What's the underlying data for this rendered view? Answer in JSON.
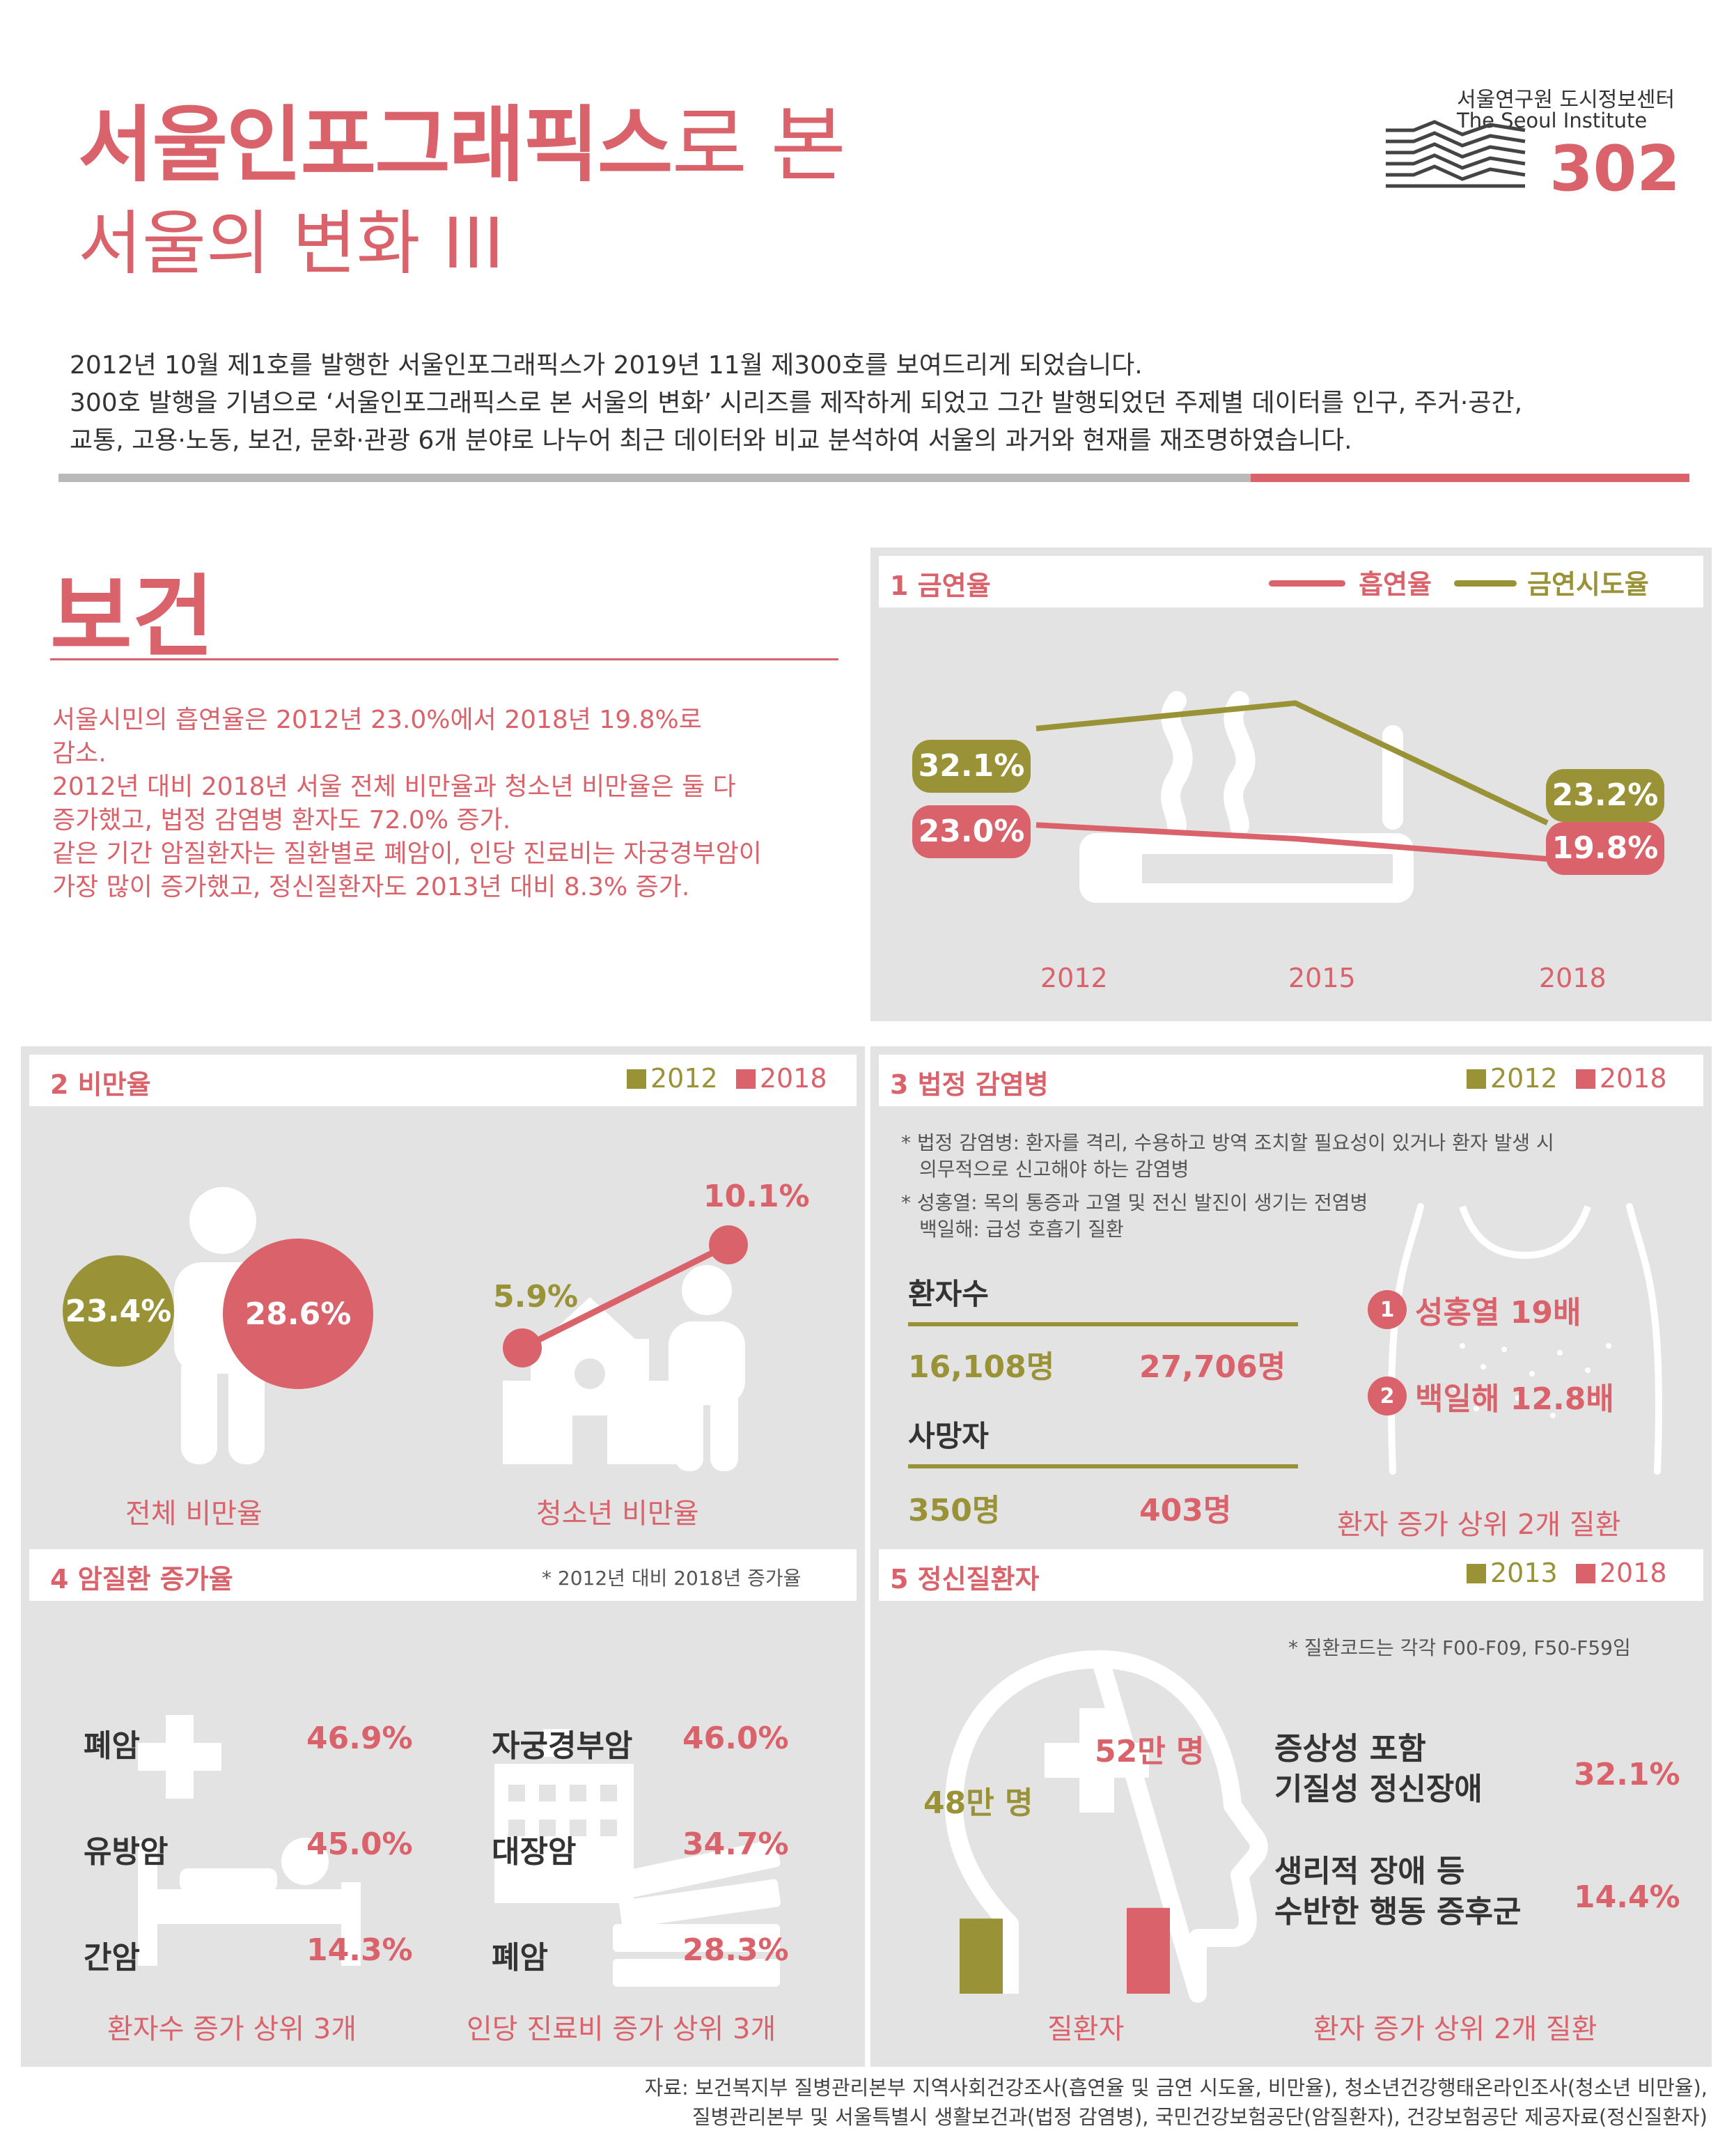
{
  "header": {
    "title_bold": "서울인포그래픽스",
    "title_rest": "로 본",
    "title_line2": "서울의 변화 III",
    "org_kr": "서울연구원 도시정보센터",
    "org_en": "The Seoul Institute",
    "issue": "302",
    "intro": [
      "2012년 10월 제1호를 발행한 서울인포그래픽스가 2019년 11월 제300호를 보여드리게 되었습니다.",
      "300호 발행을 기념으로 ‘서울인포그래픽스로 본 서울의 변화’ 시리즈를 제작하게 되었고 그간 발행되었던 주제별 데이터를 인구, 주거·공간,",
      "교통, 고용·노동, 보건, 문화·관광 6개 분야로 나누어 최근 데이터와 비교 분석하여 서울의 과거와 현재를 재조명하였습니다."
    ]
  },
  "section": {
    "title": "보건",
    "summary": [
      "서울시민의 흡연율은 2012년 23.0%에서 2018년 19.8%로",
      "감소.",
      "2012년 대비 2018년 서울 전체 비만율과 청소년 비만율은 둘 다",
      "증가했고, 법정 감염병 환자도 72.0% 증가.",
      "같은 기간 암질환자는 질환별로 폐암이, 인당 진료비는 자궁경부암이",
      "가장 많이 증가했고, 정신질환자도 2013년 대비 8.3% 증가."
    ]
  },
  "panel1": {
    "title": "1  금연율",
    "legend_smoking": "흡연율",
    "legend_quit": "금연시도율",
    "colors": {
      "smoking": "#d9626b",
      "quit": "#9a9237"
    }
  },
  "chart_data": {
    "type": "line",
    "x": [
      "2012",
      "2015",
      "2018"
    ],
    "series": [
      {
        "name": "흡연율",
        "values": [
          23.0,
          21.7,
          19.8
        ],
        "labels": [
          "23.0%",
          "",
          "19.8%"
        ]
      },
      {
        "name": "금연시도율",
        "values": [
          32.1,
          34.5,
          23.2
        ],
        "labels": [
          "32.1%",
          "",
          "23.2%"
        ]
      }
    ],
    "ylim": [
      15,
      38
    ],
    "legend": "top-right",
    "grid": false
  },
  "panel2": {
    "title": "2  비만율",
    "legend": [
      "2012",
      "2018"
    ],
    "total_2012": "23.4%",
    "total_2018": "28.6%",
    "total_label": "전체 비만율",
    "youth_2012": "5.9%",
    "youth_2018": "10.1%",
    "youth_label": "청소년 비만율"
  },
  "panel3": {
    "title": "3  법정 감염병",
    "legend": [
      "2012",
      "2018"
    ],
    "note1a": "* 법정 감염병:  환자를 격리, 수용하고 방역 조치할 필요성이 있거나 환자 발생 시",
    "note1b": "의무적으로 신고해야 하는 감염병",
    "note2a": "* 성홍열: 목의 통증과 고열 및 전신 발진이 생기는 전염병",
    "note2b": "백일해: 급성 호흡기 질환",
    "patients_label": "환자수",
    "patients_2012": "16,108명",
    "patients_2018": "27,706명",
    "deaths_label": "사망자",
    "deaths_2012": "350명",
    "deaths_2018": "403명",
    "rank1_num": "1",
    "rank1": "성홍열 19배",
    "rank2_num": "2",
    "rank2": "백일해 12.8배",
    "caption": "환자 증가 상위 2개 질환"
  },
  "panel4": {
    "title": "4  암질환 증가율",
    "note": "* 2012년 대비 2018년 증가율",
    "left": [
      {
        "name": "폐암",
        "value": "46.9%"
      },
      {
        "name": "유방암",
        "value": "45.0%"
      },
      {
        "name": "간암",
        "value": "14.3%"
      }
    ],
    "right": [
      {
        "name": "자궁경부암",
        "value": "46.0%"
      },
      {
        "name": "대장암",
        "value": "34.7%"
      },
      {
        "name": "폐암",
        "value": "28.3%"
      }
    ],
    "left_caption": "환자수 증가 상위 3개",
    "right_caption": "인당 진료비 증가 상위 3개"
  },
  "panel5": {
    "title": "5  정신질환자",
    "legend": [
      "2013",
      "2018"
    ],
    "note": "* 질환코드는 각각 F00-F09, F50-F59임",
    "val_2013": "48만 명",
    "val_2018": "52만 명",
    "bars": [
      48,
      52
    ],
    "bar_caption": "질환자",
    "item1_l1": "증상성 포함",
    "item1_l2": "기질성 정신장애",
    "item1_val": "32.1%",
    "item2_l1": "생리적 장애 등",
    "item2_l2": "수반한 행동 증후군",
    "item2_val": "14.4%",
    "caption": "환자 증가 상위 2개 질환"
  },
  "source": {
    "line1": "자료: 보건복지부 질병관리본부 지역사회건강조사(흡연율 및 금연 시도율, 비만율), 청소년건강행태온라인조사(청소년 비만율),",
    "line2": "질병관리본부 및 서울특별시 생활보건과(법정 감염병), 국민건강보험공단(암질환자), 건강보험공단 제공자료(정신질환자)"
  }
}
